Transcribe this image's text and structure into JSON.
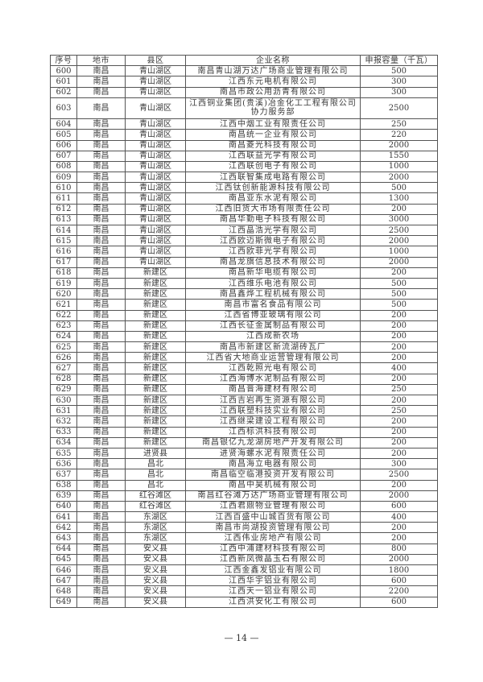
{
  "table": {
    "headers": [
      "序号",
      "地市",
      "县区",
      "企业名称",
      "申报容量（千瓦）"
    ],
    "rows": [
      [
        "600",
        "南昌",
        "青山湖区",
        "南昌青山湖万达广场商业管理有限公司",
        "500"
      ],
      [
        "601",
        "南昌",
        "青山湖区",
        "江西东元电机有限公司",
        "300"
      ],
      [
        "602",
        "南昌",
        "青山湖区",
        "南昌市政公用沥青有限公司",
        "300"
      ],
      [
        "603",
        "南昌",
        "青山湖区",
        "江西铜业集团(贵溪)冶金化工工程有限公司协力服务部",
        "2500"
      ],
      [
        "604",
        "南昌",
        "青山湖区",
        "江西中烟工业有限责任公司",
        "250"
      ],
      [
        "605",
        "南昌",
        "青山湖区",
        "南昌统一企业有限公司",
        "220"
      ],
      [
        "606",
        "南昌",
        "青山湖区",
        "南昌菱光科技有限公司",
        "2000"
      ],
      [
        "607",
        "南昌",
        "青山湖区",
        "江西联益光学有限公司",
        "1550"
      ],
      [
        "608",
        "南昌",
        "青山湖区",
        "江西联创电子有限公司",
        "1000"
      ],
      [
        "609",
        "南昌",
        "青山湖区",
        "江西联智集成电路有限公司",
        "2000"
      ],
      [
        "610",
        "南昌",
        "青山湖区",
        "江西钛创新能源科技有限公司",
        "500"
      ],
      [
        "611",
        "南昌",
        "青山湖区",
        "南昌亚东水泥有限公司",
        "1300"
      ],
      [
        "612",
        "南昌",
        "青山湖区",
        "江西旧货大市场有限责任公司",
        "200"
      ],
      [
        "613",
        "南昌",
        "青山湖区",
        "南昌华勤电子科技有限公司",
        "3000"
      ],
      [
        "614",
        "南昌",
        "青山湖区",
        "江西晶浩光学有限公司",
        "2500"
      ],
      [
        "615",
        "南昌",
        "青山湖区",
        "江西欧迈斯微电子有限公司",
        "2000"
      ],
      [
        "616",
        "南昌",
        "青山湖区",
        "江西欧菲光学有限公司",
        "1000"
      ],
      [
        "617",
        "南昌",
        "青山湖区",
        "南昌龙旗信息技术有限公司",
        "2000"
      ],
      [
        "618",
        "南昌",
        "新建区",
        "南昌新华电缆有限公司",
        "200"
      ],
      [
        "619",
        "南昌",
        "新建区",
        "江西维乐电池有限公司",
        "500"
      ],
      [
        "620",
        "南昌",
        "新建区",
        "南昌鑫烨工程机械有限公司",
        "500"
      ],
      [
        "621",
        "南昌",
        "新建区",
        "南昌市富名食品有限公司",
        "500"
      ],
      [
        "622",
        "南昌",
        "新建区",
        "江西省博亚玻璃有限公司",
        "200"
      ],
      [
        "623",
        "南昌",
        "新建区",
        "江西长征金属制品有限公司",
        "200"
      ],
      [
        "624",
        "南昌",
        "新建区",
        "江西成新农场",
        "200"
      ],
      [
        "625",
        "南昌",
        "新建区",
        "南昌市新建区新流湖砖瓦厂",
        "200"
      ],
      [
        "626",
        "南昌",
        "新建区",
        "江西省大地商业运营管理有限公司",
        "200"
      ],
      [
        "627",
        "南昌",
        "新建区",
        "江西乾照光电有限公司",
        "400"
      ],
      [
        "628",
        "南昌",
        "新建区",
        "江西海博水泥制品有限公司",
        "200"
      ],
      [
        "629",
        "南昌",
        "新建区",
        "南昌晋海建材有限公司",
        "250"
      ],
      [
        "630",
        "南昌",
        "新建区",
        "江西吉岩再生资源有限公司",
        "200"
      ],
      [
        "631",
        "南昌",
        "新建区",
        "江西联塑科技实业有限公司",
        "250"
      ],
      [
        "632",
        "南昌",
        "新建区",
        "江西继梁建设工程有限公司",
        "200"
      ],
      [
        "633",
        "南昌",
        "新建区",
        "江西标洪科技有限公司",
        "200"
      ],
      [
        "634",
        "南昌",
        "新建区",
        "南昌银亿九龙湖房地产开发有限公司",
        "200"
      ],
      [
        "635",
        "南昌",
        "进贤县",
        "进贤海螺水泥有限责任公司",
        "200"
      ],
      [
        "636",
        "南昌",
        "昌北",
        "南昌海立电器有限公司",
        "300"
      ],
      [
        "637",
        "南昌",
        "昌北",
        "南昌临空临港投资开发有限公司",
        "2500"
      ],
      [
        "638",
        "南昌",
        "昌北",
        "南昌中昊机械有限公司",
        "200"
      ],
      [
        "639",
        "南昌",
        "红谷滩区",
        "南昌红谷滩万达广场商业管理有限公司",
        "2000"
      ],
      [
        "640",
        "南昌",
        "红谷滩区",
        "江西君鼎物业管理有限公司",
        "600"
      ],
      [
        "641",
        "南昌",
        "东湖区",
        "江西百盛中山城百货有限公司",
        "400"
      ],
      [
        "642",
        "南昌",
        "东湖区",
        "南昌市尚湖投资管理有限公司",
        "200"
      ],
      [
        "643",
        "南昌",
        "东湖区",
        "江西伟业房地产有限公司",
        "200"
      ],
      [
        "644",
        "南昌",
        "安义县",
        "江西中浦建材科技有限公司",
        "800"
      ],
      [
        "645",
        "南昌",
        "安义县",
        "江西新凤微晶玉石有限公司",
        "2000"
      ],
      [
        "646",
        "南昌",
        "安义县",
        "江西金鑫发铝业有限公司",
        "1800"
      ],
      [
        "647",
        "南昌",
        "安义县",
        "江西华宇铝业有限公司",
        "600"
      ],
      [
        "648",
        "南昌",
        "安义县",
        "江西天一铝业有限公司",
        "2200"
      ],
      [
        "649",
        "南昌",
        "安义县",
        "江西洪安化工有限公司",
        "600"
      ]
    ]
  },
  "footer": {
    "page_number": "— 14 —"
  }
}
